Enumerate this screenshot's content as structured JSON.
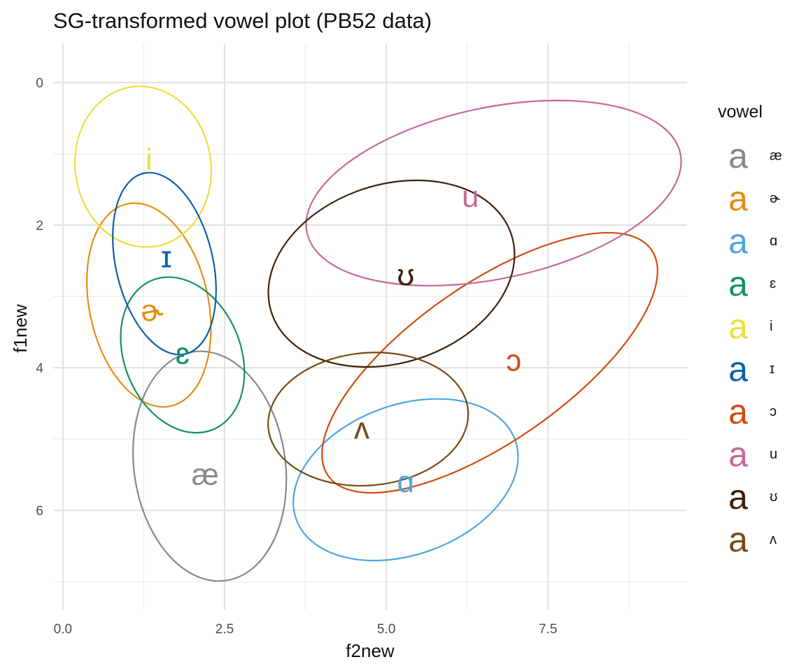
{
  "chart_data": {
    "type": "scatter",
    "title": "SG-transformed vowel plot (PB52 data)",
    "xlabel": "f2new",
    "ylabel": "f1new",
    "xlim": [
      -0.15,
      9.65
    ],
    "ylim": [
      7.4,
      -0.55
    ],
    "y_reversed": true,
    "x_ticks": [
      0,
      2.5,
      5,
      7.5
    ],
    "x_tick_labels": [
      "0.0",
      "2.5",
      "5.0",
      "7.5"
    ],
    "y_ticks": [
      0,
      2,
      4,
      6
    ],
    "y_tick_labels": [
      "0",
      "2",
      "4",
      "6"
    ],
    "grid": true,
    "legend_title": "vowel",
    "legend_key_glyph": "a",
    "legend_position": "right",
    "series": [
      {
        "name": "æ",
        "label": "æ",
        "color": "#888888",
        "x": 2.2,
        "y": 5.5,
        "ellipse": {
          "cx": 2.27,
          "cy": 5.38,
          "rx": 1.17,
          "ry": 1.62,
          "angle": -8
        }
      },
      {
        "name": "ɚ",
        "label": "ɚ",
        "color": "#E09012",
        "x": 1.38,
        "y": 3.2,
        "ellipse": {
          "cx": 1.33,
          "cy": 3.12,
          "rx": 0.92,
          "ry": 1.45,
          "angle": -12
        }
      },
      {
        "name": "ɑ",
        "label": "ɑ",
        "color": "#4FA5E0",
        "x": 5.3,
        "y": 5.6,
        "ellipse": {
          "cx": 5.3,
          "cy": 5.57,
          "rx": 1.8,
          "ry": 1.05,
          "angle": -20
        }
      },
      {
        "name": "ɛ",
        "label": "ɛ",
        "color": "#149068",
        "x": 1.85,
        "y": 3.8,
        "ellipse": {
          "cx": 1.85,
          "cy": 3.82,
          "rx": 0.9,
          "ry": 1.13,
          "angle": -22
        }
      },
      {
        "name": "i",
        "label": "i",
        "color": "#ECE040",
        "x": 1.33,
        "y": 1.08,
        "ellipse": {
          "cx": 1.24,
          "cy": 1.18,
          "rx": 1.05,
          "ry": 1.13,
          "angle": -8
        }
      },
      {
        "name": "ɪ",
        "label": "ɪ",
        "color": "#0C60A8",
        "x": 1.6,
        "y": 2.45,
        "ellipse": {
          "cx": 1.57,
          "cy": 2.54,
          "rx": 0.75,
          "ry": 1.3,
          "angle": -13
        }
      },
      {
        "name": "ɔ",
        "label": "ɔ",
        "color": "#CF4D0F",
        "x": 6.97,
        "y": 3.9,
        "ellipse": {
          "cx": 6.6,
          "cy": 3.93,
          "rx": 3.05,
          "ry": 1.1,
          "angle": -35
        }
      },
      {
        "name": "u",
        "label": "u",
        "color": "#C76898",
        "x": 6.3,
        "y": 1.6,
        "ellipse": {
          "cx": 6.66,
          "cy": 1.55,
          "rx": 2.95,
          "ry": 1.2,
          "angle": -12
        }
      },
      {
        "name": "ʊ",
        "label": "ʊ",
        "color": "#3F2008",
        "x": 5.3,
        "y": 2.7,
        "ellipse": {
          "cx": 5.08,
          "cy": 2.68,
          "rx": 1.95,
          "ry": 1.25,
          "angle": -18
        }
      },
      {
        "name": "ʌ",
        "label": "ʌ",
        "color": "#764A14",
        "x": 4.62,
        "y": 4.85,
        "ellipse": {
          "cx": 4.72,
          "cy": 4.72,
          "rx": 1.55,
          "ry": 0.93,
          "angle": -5
        }
      }
    ]
  }
}
